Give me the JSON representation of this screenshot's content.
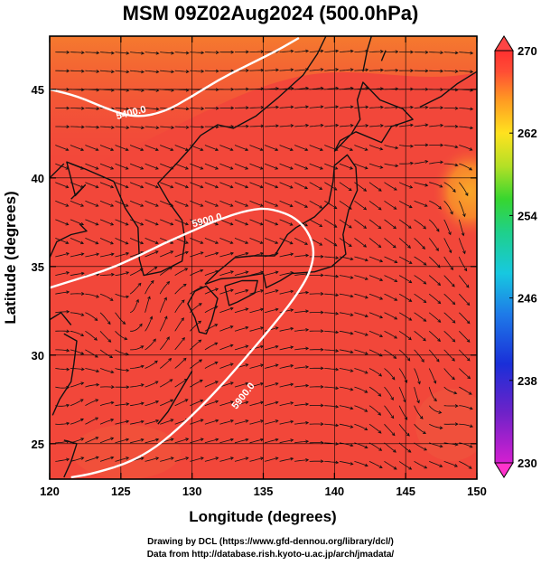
{
  "title": "MSM 09Z02Aug2024 (500.0hPa)",
  "map": {
    "xlabel": "Longitude (degrees)",
    "ylabel": "Latitude  (degrees)",
    "lon_range": [
      120,
      150
    ],
    "lat_range": [
      23,
      48
    ],
    "lon_ticks": [
      "120",
      "125",
      "130",
      "135",
      "140",
      "145",
      "150"
    ],
    "lat_ticks": [
      "25",
      "30",
      "35",
      "40",
      "45"
    ],
    "lon_tick_values": [
      120,
      125,
      130,
      135,
      140,
      145,
      150
    ],
    "lat_tick_values": [
      25,
      30,
      35,
      40,
      45
    ],
    "field": "temperature",
    "contours": [
      {
        "label": "5400.0",
        "points": [
          [
            120,
            45.0
          ],
          [
            122,
            44.6
          ],
          [
            124,
            43.9
          ],
          [
            126,
            43.4
          ],
          [
            128,
            43.7
          ],
          [
            130,
            44.6
          ],
          [
            132,
            45.6
          ],
          [
            134,
            46.4
          ],
          [
            136,
            47.2
          ],
          [
            137.5,
            47.9
          ]
        ]
      },
      {
        "label": "5900.0",
        "points": [
          [
            120,
            33.8
          ],
          [
            122,
            34.3
          ],
          [
            124,
            34.8
          ],
          [
            126,
            35.5
          ],
          [
            128,
            36.3
          ],
          [
            130,
            37.0
          ],
          [
            132,
            37.7
          ],
          [
            134,
            38.2
          ],
          [
            135.5,
            38.3
          ],
          [
            137.5,
            37.7
          ],
          [
            138.6,
            36.3
          ],
          [
            138.4,
            34.8
          ],
          [
            137.2,
            33.2
          ],
          [
            135.5,
            31.5
          ],
          [
            133.5,
            29.6
          ],
          [
            131.5,
            27.8
          ],
          [
            129.5,
            26.2
          ],
          [
            127.5,
            24.8
          ],
          [
            125.5,
            23.9
          ],
          [
            123,
            23.3
          ],
          [
            121.5,
            23.1
          ]
        ]
      }
    ],
    "contour_labels": [
      "5400.0",
      "5900.0",
      "5900.0"
    ],
    "warm_cores": [
      {
        "lon": 150,
        "lat": 39.3,
        "label": ""
      }
    ]
  },
  "colorbar": {
    "min": 230,
    "max": 270,
    "labels": [
      "270",
      "262",
      "254",
      "246",
      "238",
      "230"
    ],
    "label_values": [
      270,
      262,
      254,
      246,
      238,
      230
    ],
    "colors": [
      "#d01fd0",
      "#7a22c8",
      "#1a2fd8",
      "#1e7ae8",
      "#17c8e0",
      "#1fd08a",
      "#37d62f",
      "#b4e026",
      "#ffe21f",
      "#ff9a22",
      "#ff4d35",
      "#ff3030"
    ]
  },
  "footer": {
    "line1": "Drawing by DCL (https://www.gfd-dennou.org/library/dcl/)",
    "line2": "Data from http://database.rish.kyoto-u.ac.jp/arch/jmadata/"
  },
  "colors": {
    "background_field": "#f2473a",
    "warm_field": "#f57d2c",
    "contour": "#ffffff",
    "vectors": "#111111",
    "coast": "#111111"
  }
}
